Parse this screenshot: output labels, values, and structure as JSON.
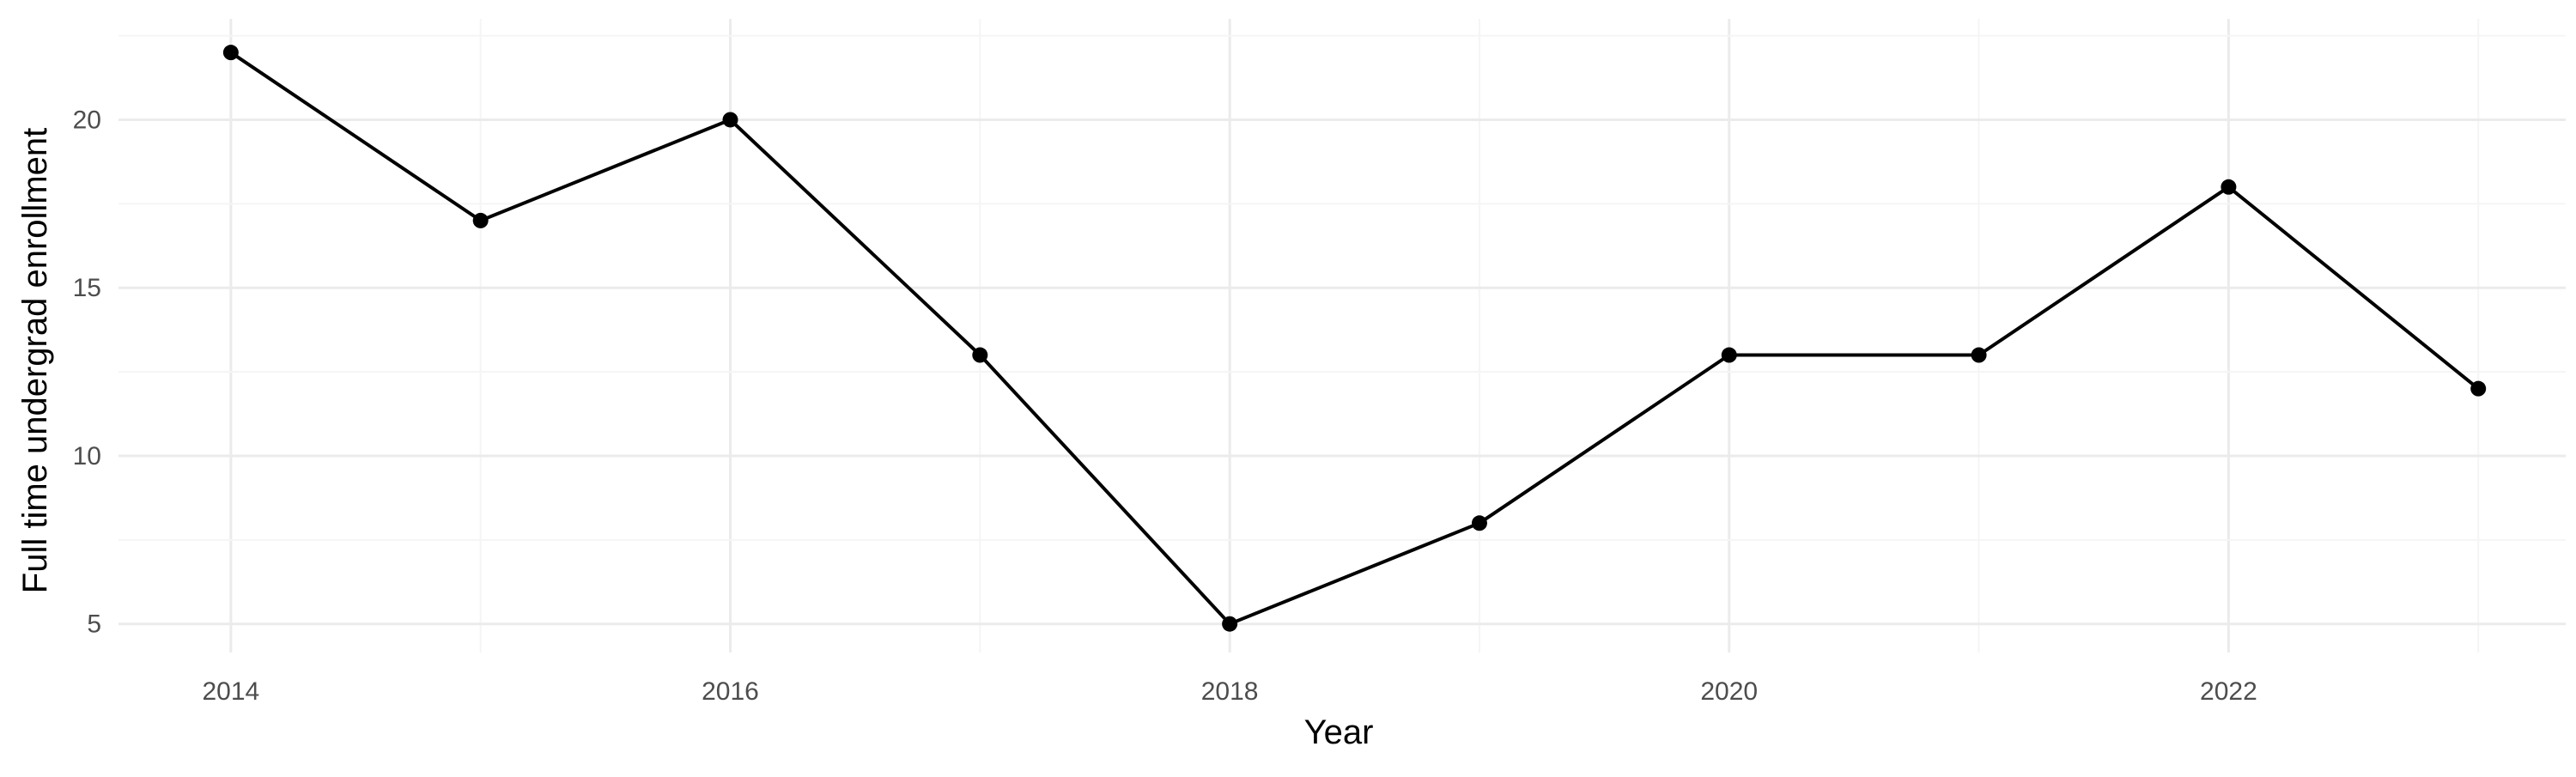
{
  "colors": {
    "background": "#ffffff",
    "grid_major": "#ebebeb",
    "grid_minor": "#f5f5f5",
    "line": "#000000",
    "point": "#000000",
    "tick_text": "#4d4d4d",
    "axis_title": "#000000"
  },
  "chart_data": {
    "type": "line",
    "title": "",
    "xlabel": "Year",
    "ylabel": "Full time undergrad enrollment",
    "xlim": [
      2013.55,
      2023.35
    ],
    "ylim": [
      4.15,
      23.0
    ],
    "x_ticks": [
      2014,
      2016,
      2018,
      2020,
      2022
    ],
    "x_tick_labels": [
      "2014",
      "2016",
      "2018",
      "2020",
      "2022"
    ],
    "y_ticks": [
      5,
      10,
      15,
      20
    ],
    "y_tick_labels": [
      "5",
      "10",
      "15",
      "20"
    ],
    "grid": true,
    "legend": "none",
    "series": [
      {
        "x": [
          2014,
          2015,
          2016,
          2017,
          2018,
          2019,
          2020,
          2021,
          2022,
          2023
        ],
        "values": [
          22,
          17,
          20,
          13,
          5,
          8,
          13,
          13,
          18,
          12
        ]
      }
    ]
  }
}
